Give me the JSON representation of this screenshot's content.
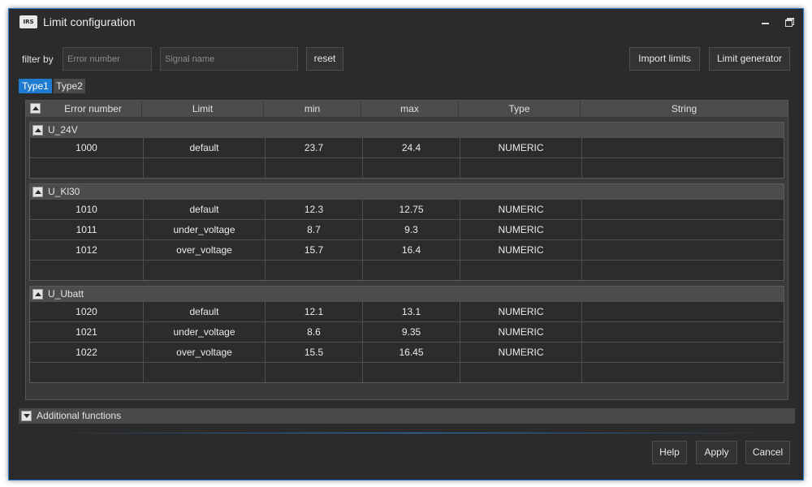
{
  "window": {
    "logo_text": "IRS",
    "title": "Limit configuration"
  },
  "filter": {
    "label": "filter by",
    "error_placeholder": "Error number",
    "signal_placeholder": "Signal name",
    "reset_label": "reset",
    "import_label": "Import limits",
    "generator_label": "Limit generator"
  },
  "tabs": [
    {
      "label": "Type1",
      "active": true
    },
    {
      "label": "Type2",
      "active": false
    }
  ],
  "table": {
    "columns": [
      "Error number",
      "Limit",
      "min",
      "max",
      "Type",
      "String"
    ],
    "groups": [
      {
        "name": "U_24V",
        "rows": [
          [
            "1000",
            "default",
            "23.7",
            "24.4",
            "NUMERIC",
            ""
          ],
          [
            "",
            "",
            "",
            "",
            "",
            ""
          ]
        ]
      },
      {
        "name": "U_Kl30",
        "rows": [
          [
            "1010",
            "default",
            "12.3",
            "12.75",
            "NUMERIC",
            ""
          ],
          [
            "1011",
            "under_voltage",
            "8.7",
            "9.3",
            "NUMERIC",
            ""
          ],
          [
            "1012",
            "over_voltage",
            "15.7",
            "16.4",
            "NUMERIC",
            ""
          ],
          [
            "",
            "",
            "",
            "",
            "",
            ""
          ]
        ]
      },
      {
        "name": "U_Ubatt",
        "rows": [
          [
            "1020",
            "default",
            "12.1",
            "13.1",
            "NUMERIC",
            ""
          ],
          [
            "1021",
            "under_voltage",
            "8.6",
            "9.35",
            "NUMERIC",
            ""
          ],
          [
            "1022",
            "over_voltage",
            "15.5",
            "16.45",
            "NUMERIC",
            ""
          ],
          [
            "",
            "",
            "",
            "",
            "",
            ""
          ]
        ]
      }
    ]
  },
  "additional": {
    "label": "Additional functions"
  },
  "footer": {
    "help_label": "Help",
    "apply_label": "Apply",
    "cancel_label": "Cancel"
  },
  "colors": {
    "accent": "#1e7bcf",
    "window_bg": "#2b2b2b",
    "border": "#2a7fd4"
  }
}
